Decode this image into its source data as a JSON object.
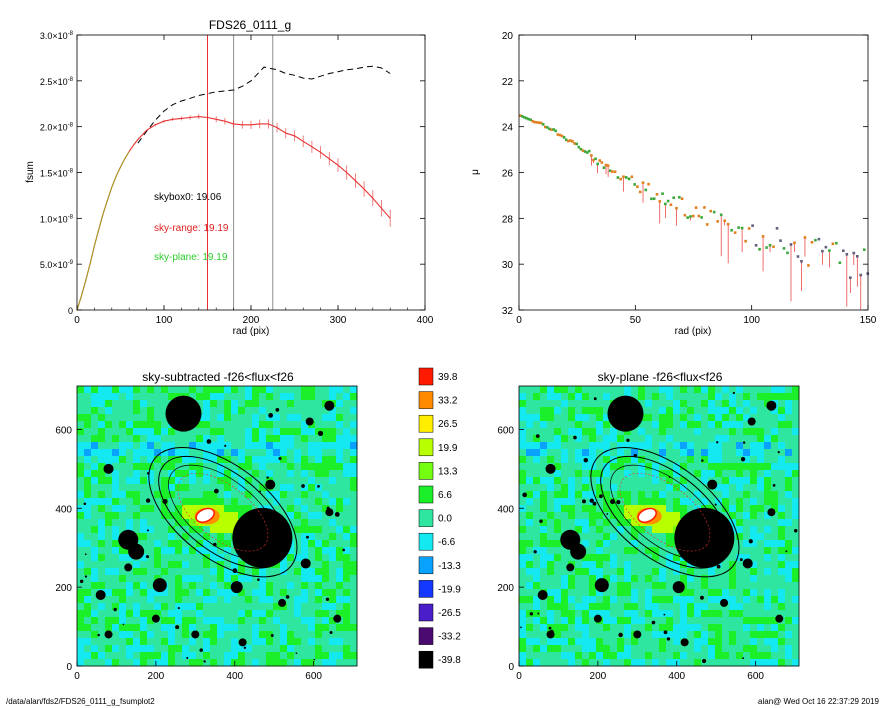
{
  "chart_data": [
    {
      "type": "line",
      "title": "FDS26_0111_g",
      "xlabel": "rad (pix)",
      "ylabel": "fsum",
      "xlim": [
        0,
        400
      ],
      "ylim": [
        0,
        3e-08
      ],
      "xticks": [
        "0",
        "100",
        "200",
        "300",
        "400"
      ],
      "yticks": [
        {
          "v": 0,
          "m": "0",
          "e": ""
        },
        {
          "v": 5e-09,
          "m": "5.0×10",
          "e": "-9"
        },
        {
          "v": 1e-08,
          "m": "1.0×10",
          "e": "-8"
        },
        {
          "v": 1.5e-08,
          "m": "1.5×10",
          "e": "-8"
        },
        {
          "v": 2e-08,
          "m": "2.0×10",
          "e": "-8"
        },
        {
          "v": 2.5e-08,
          "m": "2.5×10",
          "e": "-8"
        },
        {
          "v": 3e-08,
          "m": "3.0×10",
          "e": "-8"
        }
      ],
      "vlines": [
        {
          "x": 150,
          "color": "#e83030"
        },
        {
          "x": 180,
          "color": "#909090"
        },
        {
          "x": 225,
          "color": "#909090"
        }
      ],
      "annotations": [
        {
          "text": "skybox0: 19.06",
          "color": "#000000"
        },
        {
          "text": "sky-range: 19.19",
          "color": "#e02020"
        },
        {
          "text": "sky-plane: 19.19",
          "color": "#2ccd2c"
        }
      ],
      "series": [
        {
          "style": "dashed",
          "color": "#000000",
          "x": [
            70,
            80,
            90,
            100,
            110,
            120,
            130,
            140,
            150,
            160,
            170,
            180,
            190,
            200,
            210,
            215,
            220,
            230,
            240,
            250,
            260,
            270,
            280,
            290,
            300,
            310,
            320,
            330,
            340,
            350,
            360
          ],
          "y": [
            1.82e-08,
            1.95e-08,
            2.07e-08,
            2.17e-08,
            2.24e-08,
            2.28e-08,
            2.31e-08,
            2.34e-08,
            2.36e-08,
            2.38e-08,
            2.39e-08,
            2.4e-08,
            2.44e-08,
            2.5e-08,
            2.6e-08,
            2.65e-08,
            2.64e-08,
            2.62e-08,
            2.58e-08,
            2.56e-08,
            2.53e-08,
            2.52e-08,
            2.55e-08,
            2.58e-08,
            2.6e-08,
            2.62e-08,
            2.63e-08,
            2.65e-08,
            2.66e-08,
            2.64e-08,
            2.58e-08
          ]
        },
        {
          "style": "solid",
          "color": "#e83030",
          "x": [
            0,
            5,
            10,
            15,
            20,
            25,
            30,
            35,
            40,
            45,
            50,
            55,
            60,
            65,
            70,
            75,
            80,
            90,
            100,
            110,
            120,
            130,
            140,
            150,
            160,
            170,
            180,
            190,
            200,
            210,
            220,
            230,
            240,
            250,
            260,
            270,
            280,
            290,
            300,
            310,
            320,
            330,
            340,
            350,
            360
          ],
          "y": [
            0,
            1.5e-09,
            3.2e-09,
            5e-09,
            7e-09,
            8.8e-09,
            1.05e-08,
            1.2e-08,
            1.34e-08,
            1.46e-08,
            1.56e-08,
            1.65e-08,
            1.73e-08,
            1.8e-08,
            1.86e-08,
            1.91e-08,
            1.96e-08,
            2.02e-08,
            2.06e-08,
            2.08e-08,
            2.09e-08,
            2.1e-08,
            2.11e-08,
            2.1e-08,
            2.08e-08,
            2.06e-08,
            2.03e-08,
            2.02e-08,
            2.02e-08,
            2.03e-08,
            2.03e-08,
            1.99e-08,
            1.93e-08,
            1.9e-08,
            1.84e-08,
            1.78e-08,
            1.72e-08,
            1.65e-08,
            1.58e-08,
            1.5e-08,
            1.41e-08,
            1.32e-08,
            1.22e-08,
            1.11e-08,
            1e-08
          ]
        },
        {
          "style": "solid",
          "color": "#a0a020",
          "x": [
            0,
            5,
            10,
            15,
            20,
            25,
            30,
            35,
            40,
            45,
            50,
            55,
            60
          ],
          "y": [
            0,
            1.5e-09,
            3.2e-09,
            5e-09,
            7e-09,
            8.8e-09,
            1.05e-08,
            1.2e-08,
            1.34e-08,
            1.46e-08,
            1.56e-08,
            1.65e-08,
            1.73e-08
          ]
        }
      ]
    },
    {
      "type": "scatter",
      "xlabel": "rad (pix)",
      "ylabel": "μ",
      "xlim": [
        0,
        150
      ],
      "ylim": [
        32,
        20
      ],
      "xticks": [
        "0",
        "50",
        "100",
        "150"
      ],
      "yticks": [
        "20",
        "22",
        "24",
        "26",
        "28",
        "30",
        "32"
      ],
      "profile": {
        "x": [
          0,
          10,
          20,
          30,
          40,
          50,
          60,
          70,
          80,
          90,
          100,
          110,
          120,
          130,
          140,
          150
        ],
        "y": [
          23.5,
          23.9,
          24.5,
          25.2,
          25.9,
          26.5,
          27.0,
          27.5,
          27.9,
          28.3,
          28.7,
          29.0,
          29.3,
          29.6,
          29.9,
          30.2
        ]
      },
      "colors": {
        "orange": "#e08020",
        "green": "#3aa83a",
        "gray": "#606080",
        "red": "#e83030"
      }
    },
    {
      "type": "heatmap",
      "title": "sky-subtracted -f26<flux<f26",
      "xlim": [
        0,
        710
      ],
      "ylim": [
        0,
        710
      ],
      "xticks": [
        "0",
        "200",
        "400",
        "600"
      ],
      "yticks": [
        "0",
        "200",
        "400",
        "600"
      ]
    },
    {
      "type": "heatmap",
      "title": "sky-plane -f26<flux<f26",
      "xlim": [
        0,
        710
      ],
      "ylim": [
        0,
        710
      ],
      "xticks": [
        "0",
        "200",
        "400",
        "600"
      ],
      "yticks": [
        "0",
        "200",
        "400",
        "600"
      ]
    }
  ],
  "colorbar": {
    "levels": [
      {
        "label": "39.8",
        "color": "#ff1a00"
      },
      {
        "label": "33.2",
        "color": "#ff8a00"
      },
      {
        "label": "26.5",
        "color": "#ffee00"
      },
      {
        "label": "19.9",
        "color": "#b8ff00"
      },
      {
        "label": "13.3",
        "color": "#74ff10"
      },
      {
        "label": "6.6",
        "color": "#1aef2a"
      },
      {
        "label": "0.0",
        "color": "#2ee6a0"
      },
      {
        "label": "-6.6",
        "color": "#14e8f0"
      },
      {
        "label": "-13.3",
        "color": "#0aa2ff"
      },
      {
        "label": "-19.9",
        "color": "#1438ff"
      },
      {
        "label": "-26.5",
        "color": "#4a1ec8"
      },
      {
        "label": "-33.2",
        "color": "#4a0a70"
      },
      {
        "label": "-39.8",
        "color": "#000000"
      }
    ]
  },
  "footer": {
    "left": "/data/alan/fds2/FDS26_0111_g_fsumplot2",
    "right": "alan@  Wed Oct 16 22:37:29 2019"
  }
}
